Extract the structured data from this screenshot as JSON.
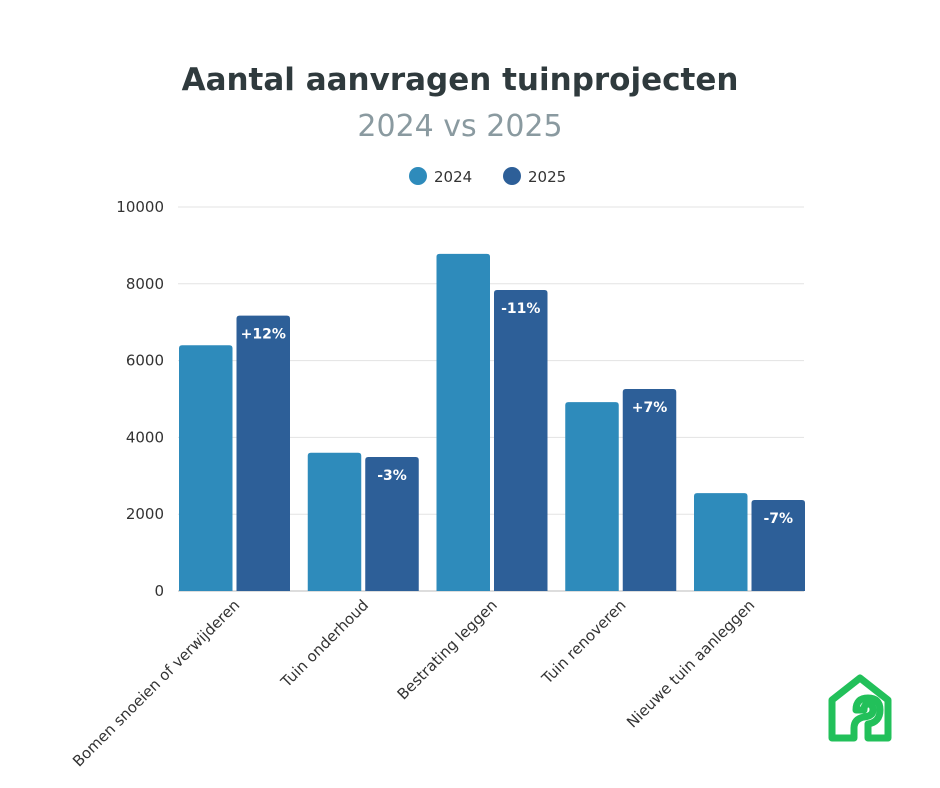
{
  "chart_data": {
    "type": "bar",
    "title": "Aantal aanvragen tuinprojecten",
    "subtitle": "2024 vs 2025",
    "categories": [
      "Bomen snoeien of verwijderen",
      "Tuin onderhoud",
      "Bestrating leggen",
      "Tuin renoveren",
      "Nieuwe tuin aanleggen"
    ],
    "series": [
      {
        "name": "2024",
        "color": "#2e8bbb",
        "values": [
          6400,
          3600,
          8780,
          4920,
          2550
        ]
      },
      {
        "name": "2025",
        "color": "#2d5f98",
        "values": [
          7170,
          3490,
          7840,
          5260,
          2370
        ],
        "data_labels": [
          "+12%",
          "-3%",
          "-11%",
          "+7%",
          "-7%"
        ]
      }
    ],
    "ylim": [
      0,
      10000
    ],
    "yticks": [
      "0",
      "2000",
      "4000",
      "6000",
      "8000",
      "10000"
    ],
    "grid": true,
    "legend": "top-center"
  },
  "logo": {
    "name": "house-logo-icon",
    "color": "#22c05a"
  }
}
